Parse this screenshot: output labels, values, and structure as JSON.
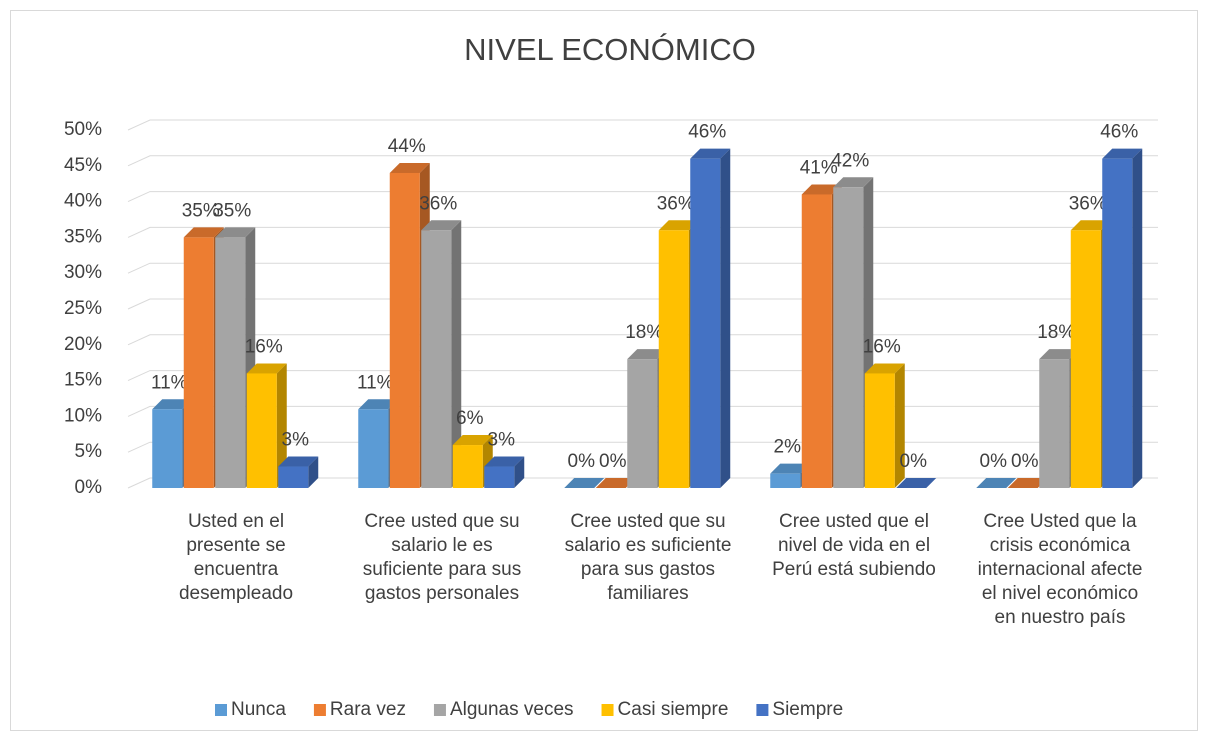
{
  "chart_data": {
    "type": "bar3d",
    "title": "NIVEL ECONÓMICO",
    "categories": [
      "Usted en el presente se encuentra desempleado",
      "Cree usted que su salario le es suficiente para sus gastos personales",
      "Cree usted que su salario es suficiente para sus gastos familiares",
      "Cree usted que el nivel de vida en el Perú está subiendo",
      "Cree Usted que la crisis económica internacional afecte el nivel económico en nuestro país"
    ],
    "series": [
      {
        "name": "Nunca",
        "color": "#5b9bd5",
        "values": [
          11,
          11,
          0,
          2,
          0
        ],
        "value_labels": [
          "11%",
          "11%",
          "0%",
          "2%",
          "0%"
        ]
      },
      {
        "name": "Rara vez",
        "color": "#ed7d31",
        "values": [
          35,
          44,
          0,
          41,
          0
        ],
        "value_labels": [
          "35%",
          "44%",
          "0%",
          "41%",
          "0%"
        ]
      },
      {
        "name": "Algunas veces",
        "color": "#a5a5a5",
        "values": [
          35,
          36,
          18,
          42,
          18
        ],
        "value_labels": [
          "35%",
          "36%",
          "18%",
          "42%",
          "18%"
        ]
      },
      {
        "name": "Casi siempre",
        "color": "#ffc000",
        "values": [
          16,
          6,
          36,
          16,
          36
        ],
        "value_labels": [
          "16%",
          "6%",
          "36%",
          "16%",
          "36%"
        ]
      },
      {
        "name": "Siempre",
        "color": "#4472c4",
        "values": [
          3,
          3,
          46,
          0,
          46
        ],
        "value_labels": [
          "3%",
          "3%",
          "46%",
          "0%",
          "46%"
        ]
      }
    ],
    "ylim": [
      0,
      50
    ],
    "yticks": [
      {
        "value": 0,
        "label": "0%"
      },
      {
        "value": 5,
        "label": "5%"
      },
      {
        "value": 10,
        "label": "10%"
      },
      {
        "value": 15,
        "label": "15%"
      },
      {
        "value": 20,
        "label": "20%"
      },
      {
        "value": 25,
        "label": "25%"
      },
      {
        "value": 30,
        "label": "30%"
      },
      {
        "value": 35,
        "label": "35%"
      },
      {
        "value": 40,
        "label": "40%"
      },
      {
        "value": 45,
        "label": "45%"
      },
      {
        "value": 50,
        "label": "50%"
      }
    ],
    "grid": true,
    "legend": "bottom"
  }
}
